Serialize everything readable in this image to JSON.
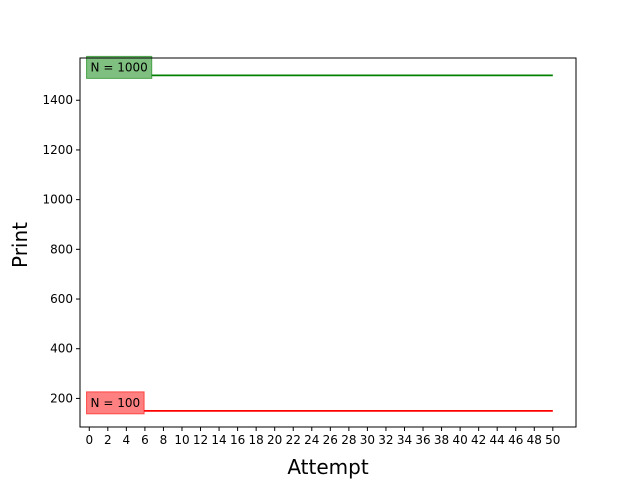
{
  "chart_data": {
    "type": "line",
    "xlabel": "Attempt",
    "ylabel": "Print",
    "xlim": [
      -1,
      52.5
    ],
    "ylim": [
      85,
      1570
    ],
    "x_ticks": [
      0,
      2,
      4,
      6,
      8,
      10,
      12,
      14,
      16,
      18,
      20,
      22,
      24,
      26,
      28,
      30,
      32,
      34,
      36,
      38,
      40,
      42,
      44,
      46,
      48,
      50
    ],
    "y_ticks": [
      200,
      400,
      600,
      800,
      1000,
      1200,
      1400
    ],
    "grid": false,
    "series": [
      {
        "name": "N = 1000",
        "color": "#008000",
        "x": [
          1,
          50
        ],
        "y": [
          1500,
          1500
        ],
        "label_box_color": "#7fbf7f"
      },
      {
        "name": "N = 100",
        "color": "#ff0000",
        "x": [
          1,
          50
        ],
        "y": [
          150,
          150
        ],
        "label_box_color": "#ff8080"
      }
    ]
  }
}
